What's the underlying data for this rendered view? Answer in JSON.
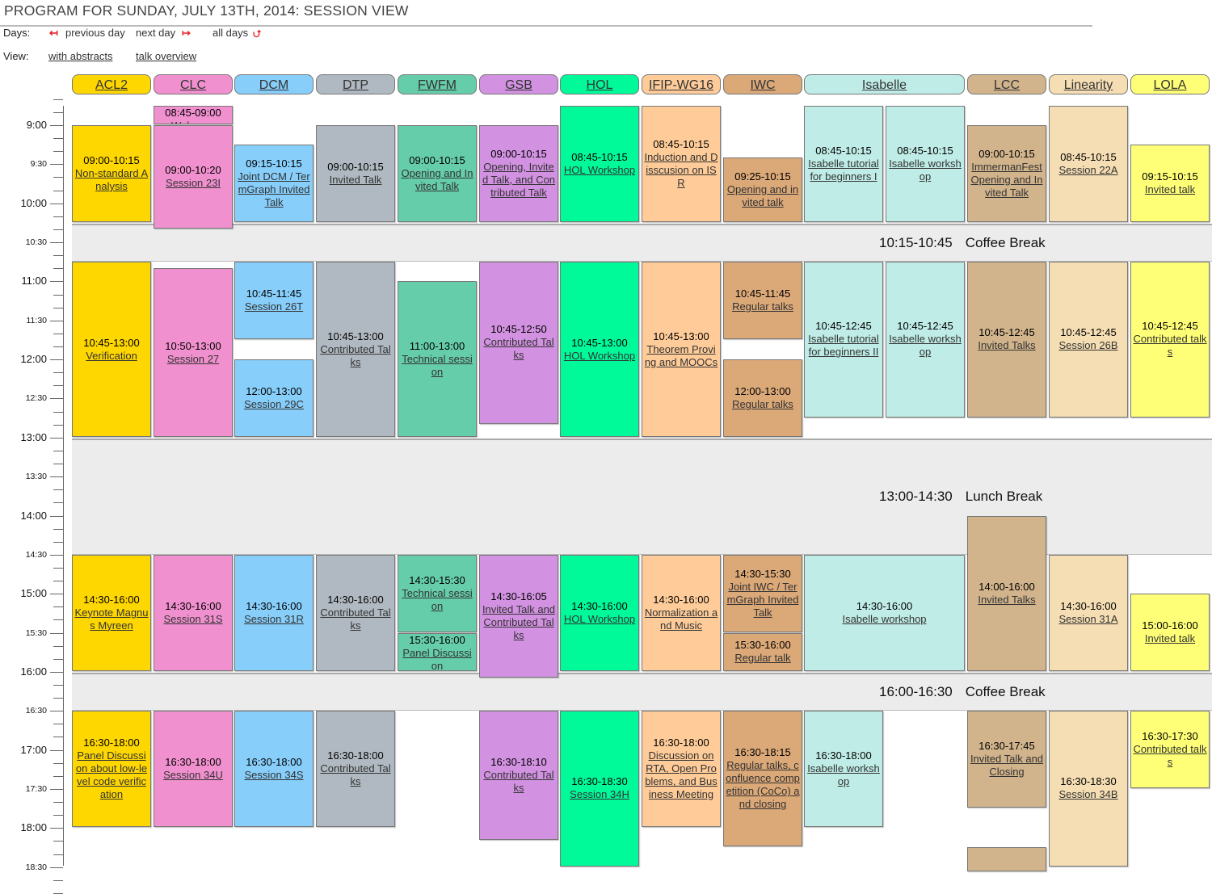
{
  "page": {
    "title": "PROGRAM FOR SUNDAY, JULY 13TH, 2014: SESSION VIEW"
  },
  "days": {
    "label": "Days:",
    "previous": "previous day",
    "next": "next day",
    "all": "all days",
    "prev_icon": "arrow-left-bar-icon",
    "next_icon": "arrow-right-bar-icon",
    "all_icon": "loop-arrows-icon"
  },
  "view": {
    "label": "View:",
    "abstracts": "with abstracts",
    "overview": "talk overview"
  },
  "time_axis": [
    "9:00",
    "9:30",
    "10:00",
    "10:30",
    "11:00",
    "11:30",
    "12:00",
    "12:30",
    "13:00",
    "13:30",
    "14:00",
    "14:30",
    "15:00",
    "15:30",
    "16:00",
    "16:30",
    "17:00",
    "17:30",
    "18:00",
    "18:30"
  ],
  "breaks": [
    {
      "time": "10:15-10:45",
      "label": "Coffee Break",
      "start": "10:15",
      "end": "10:45"
    },
    {
      "time": "13:00-14:30",
      "label": "Lunch Break",
      "start": "13:00",
      "end": "14:30"
    },
    {
      "time": "16:00-16:30",
      "label": "Coffee Break",
      "start": "16:00",
      "end": "16:30"
    }
  ],
  "tracks": [
    {
      "name": "ACL2",
      "color": "#ffd700",
      "sessions": [
        {
          "start": "09:00",
          "end": "10:15",
          "title": "Non-standard Analysis"
        },
        {
          "start": "10:45",
          "end": "13:00",
          "title": "Verification"
        },
        {
          "start": "14:30",
          "end": "16:00",
          "title": "Keynote Magnus Myreen"
        },
        {
          "start": "16:30",
          "end": "18:00",
          "title": "Panel Discussion about low-level code verification"
        }
      ]
    },
    {
      "name": "CLC",
      "color": "#f190cf",
      "sessions": [
        {
          "start": "08:45",
          "end": "09:00",
          "title": "Welcome"
        },
        {
          "start": "09:00",
          "end": "10:20",
          "title": "Session 23I"
        },
        {
          "start": "10:50",
          "end": "13:00",
          "title": "Session 27"
        },
        {
          "start": "14:30",
          "end": "16:00",
          "title": "Session 31S"
        },
        {
          "start": "16:30",
          "end": "18:00",
          "title": "Session 34U"
        }
      ]
    },
    {
      "name": "DCM",
      "color": "#87cefa",
      "sessions": [
        {
          "start": "09:15",
          "end": "10:15",
          "title": "Joint DCM / TermGraph Invited Talk"
        },
        {
          "start": "10:45",
          "end": "11:45",
          "title": "Session 26T"
        },
        {
          "start": "12:00",
          "end": "13:00",
          "title": "Session 29C"
        },
        {
          "start": "14:30",
          "end": "16:00",
          "title": "Session 31R"
        },
        {
          "start": "16:30",
          "end": "18:00",
          "title": "Session 34S"
        }
      ]
    },
    {
      "name": "DTP",
      "color": "#b0b9c1",
      "sessions": [
        {
          "start": "09:00",
          "end": "10:15",
          "title": "Invited Talk"
        },
        {
          "start": "10:45",
          "end": "13:00",
          "title": "Contributed Talks"
        },
        {
          "start": "14:30",
          "end": "16:00",
          "title": "Contributed Talks"
        },
        {
          "start": "16:30",
          "end": "18:00",
          "title": "Contributed Talks"
        }
      ]
    },
    {
      "name": "FWFM",
      "color": "#66cdaa",
      "sessions": [
        {
          "start": "09:00",
          "end": "10:15",
          "title": "Opening and Invited Talk"
        },
        {
          "start": "11:00",
          "end": "13:00",
          "title": "Technical session"
        },
        {
          "start": "14:30",
          "end": "15:30",
          "title": "Technical session"
        },
        {
          "start": "15:30",
          "end": "16:00",
          "title": "Panel Discussion"
        }
      ]
    },
    {
      "name": "GSB",
      "color": "#d292e1",
      "sessions": [
        {
          "start": "09:00",
          "end": "10:15",
          "title": "Opening, Invited Talk, and Contributed Talk"
        },
        {
          "start": "10:45",
          "end": "12:50",
          "title": "Contributed Talks"
        },
        {
          "start": "14:30",
          "end": "16:05",
          "title": "Invited Talk and Contributed Talks"
        },
        {
          "start": "16:30",
          "end": "18:10",
          "title": "Contributed Talks"
        }
      ]
    },
    {
      "name": "HOL",
      "color": "#00fa9a",
      "sessions": [
        {
          "start": "08:45",
          "end": "10:15",
          "title": "HOL Workshop"
        },
        {
          "start": "10:45",
          "end": "13:00",
          "title": "HOL Workshop"
        },
        {
          "start": "14:30",
          "end": "16:00",
          "title": "HOL Workshop"
        },
        {
          "start": "16:30",
          "end": "18:30",
          "title": "Session 34H"
        }
      ]
    },
    {
      "name": "IFIP-WG16",
      "color": "#ffcc99",
      "sessions": [
        {
          "start": "08:45",
          "end": "10:15",
          "title": "Induction and Disscusion on ISR"
        },
        {
          "start": "10:45",
          "end": "13:00",
          "title": "Theorem Proving and MOOCs"
        },
        {
          "start": "14:30",
          "end": "16:00",
          "title": "Normalization and Music"
        },
        {
          "start": "16:30",
          "end": "18:00",
          "title": "Discussion on RTA, Open Problems, and Business Meeting"
        }
      ]
    },
    {
      "name": "IWC",
      "color": "#dba878",
      "sessions": [
        {
          "start": "09:25",
          "end": "10:15",
          "title": "Opening and invited talk"
        },
        {
          "start": "10:45",
          "end": "11:45",
          "title": "Regular talks"
        },
        {
          "start": "12:00",
          "end": "13:00",
          "title": "Regular talks"
        },
        {
          "start": "14:30",
          "end": "15:30",
          "title": "Joint IWC / TermGraph Invited Talk"
        },
        {
          "start": "15:30",
          "end": "16:00",
          "title": "Regular talk"
        },
        {
          "start": "16:30",
          "end": "18:15",
          "title": "Regular talks, confluence competition (CoCo) and closing"
        }
      ]
    },
    {
      "name": "Isabelle",
      "color": "#bfece6",
      "wide": true,
      "sessions": [
        {
          "lane": "a",
          "start": "08:45",
          "end": "10:15",
          "title": "Isabelle tutorial for beginners I"
        },
        {
          "lane": "b",
          "start": "08:45",
          "end": "10:15",
          "title": "Isabelle workshop"
        },
        {
          "lane": "a",
          "start": "10:45",
          "end": "12:45",
          "title": "Isabelle tutorial for beginners II"
        },
        {
          "lane": "b",
          "start": "10:45",
          "end": "12:45",
          "title": "Isabelle workshop"
        },
        {
          "lane": "both",
          "start": "14:30",
          "end": "16:00",
          "title": "Isabelle workshop"
        },
        {
          "lane": "a",
          "start": "16:30",
          "end": "18:00",
          "title": "Isabelle workshop"
        }
      ]
    },
    {
      "name": "LCC",
      "color": "#d2b48c",
      "sessions": [
        {
          "start": "09:00",
          "end": "10:15",
          "title": "ImmermanFest Opening and Invited Talk"
        },
        {
          "start": "10:45",
          "end": "12:45",
          "title": "Invited Talks"
        },
        {
          "start": "14:00",
          "end": "16:00",
          "title": "Invited Talks"
        },
        {
          "start": "16:30",
          "end": "17:45",
          "title": "Invited Talk and Closing"
        },
        {
          "start": "18:15",
          "end": "19:00",
          "title": "",
          "hide_time": true
        }
      ]
    },
    {
      "name": "Linearity",
      "color": "#f5deb3",
      "sessions": [
        {
          "start": "08:45",
          "end": "10:15",
          "title": "Session 22A"
        },
        {
          "start": "10:45",
          "end": "12:45",
          "title": "Session 26B"
        },
        {
          "start": "14:30",
          "end": "16:00",
          "title": "Session 31A"
        },
        {
          "start": "16:30",
          "end": "18:30",
          "title": "Session 34B"
        }
      ]
    },
    {
      "name": "LOLA",
      "color": "#ffff77",
      "sessions": [
        {
          "start": "09:15",
          "end": "10:15",
          "title": "Invited talk"
        },
        {
          "start": "10:45",
          "end": "12:45",
          "title": "Contributed talks"
        },
        {
          "start": "15:00",
          "end": "16:00",
          "title": "Invited talk"
        },
        {
          "start": "16:30",
          "end": "17:30",
          "title": "Contributed talks"
        }
      ]
    }
  ]
}
